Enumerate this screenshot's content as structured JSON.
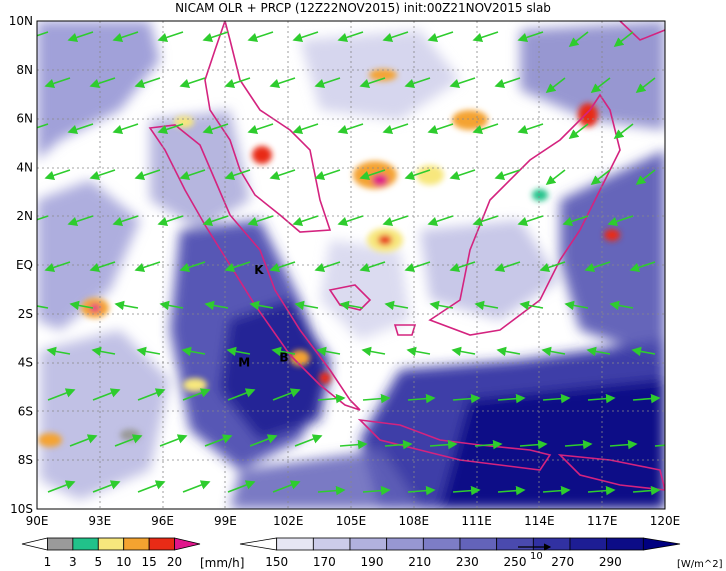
{
  "title": "NICAM OLR + PRCP (12Z22NOV2015) init:00Z21NOV2015 slab",
  "lat_labels": [
    "10N",
    "8N",
    "6N",
    "4N",
    "2N",
    "EQ",
    "2S",
    "4S",
    "6S",
    "8S",
    "10S"
  ],
  "lon_labels": [
    "90E",
    "93E",
    "96E",
    "99E",
    "102E",
    "105E",
    "108E",
    "111E",
    "114E",
    "117E",
    "120E"
  ],
  "site_labels": [
    {
      "id": "K",
      "text": "K",
      "lon": 100.6,
      "lat": -0.2
    },
    {
      "id": "M",
      "text": "M",
      "lon": 99.9,
      "lat": -4.0
    },
    {
      "id": "B",
      "text": "B",
      "lon": 101.8,
      "lat": -3.8
    }
  ],
  "prcp_colorbar": {
    "ticks": [
      "1",
      "3",
      "5",
      "10",
      "15",
      "20"
    ],
    "unit": "[mm/h]",
    "colors": [
      "#ffffff",
      "#9a9a9a",
      "#21c28a",
      "#f7e77d",
      "#f4a330",
      "#e82b16",
      "#e0168b"
    ]
  },
  "olr_colorbar": {
    "ticks": [
      "150",
      "170",
      "190",
      "210",
      "230",
      "250",
      "270",
      "290"
    ],
    "unit": "[W/m^2]",
    "colors": [
      "#ffffff",
      "#e6e6f3",
      "#ccccea",
      "#b1b1de",
      "#9797d2",
      "#7d7dc6",
      "#6363ba",
      "#4a4aae",
      "#3131a2",
      "#1d1d94",
      "#0c0c87",
      "#000080"
    ]
  },
  "vector_ref_label": "10",
  "colors": {
    "coast": "#d4237f",
    "wind": "#2ecc2e",
    "grid": "#888888"
  }
}
